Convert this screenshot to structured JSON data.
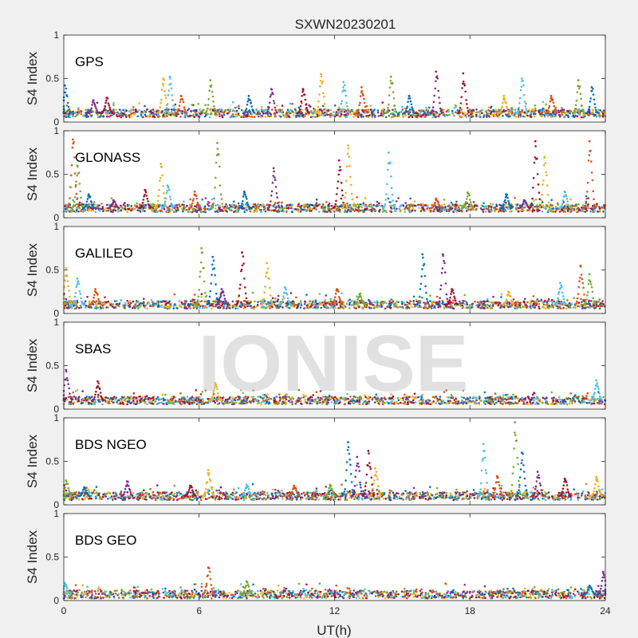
{
  "chart_data": {
    "type": "scatter",
    "title": "SXWN20230201",
    "watermark": "IONISE",
    "xlabel": "UT(h)",
    "ylabel": "S4 Index",
    "xlim": [
      0,
      24
    ],
    "ylim": [
      0,
      1
    ],
    "xticks": [
      0,
      6,
      12,
      18,
      24
    ],
    "yticks": [
      0,
      0.5,
      1
    ],
    "ytick_labels": [
      "0",
      "0.5",
      "1"
    ],
    "grid": false,
    "colors": [
      "#0072bd",
      "#d95319",
      "#edb120",
      "#7e2f8e",
      "#77ac30",
      "#4dbeee",
      "#a2142f"
    ],
    "panels": [
      {
        "name": "GPS",
        "baseline": 0.1,
        "spikes": [
          [
            0.05,
            0.42
          ],
          [
            1.3,
            0.25
          ],
          [
            1.9,
            0.28
          ],
          [
            4.4,
            0.5
          ],
          [
            4.7,
            0.52
          ],
          [
            5.2,
            0.3
          ],
          [
            6.5,
            0.48
          ],
          [
            8.2,
            0.3
          ],
          [
            9.2,
            0.38
          ],
          [
            10.6,
            0.38
          ],
          [
            11.4,
            0.55
          ],
          [
            12.4,
            0.46
          ],
          [
            13.2,
            0.4
          ],
          [
            14.5,
            0.52
          ],
          [
            15.3,
            0.3
          ],
          [
            16.5,
            0.58
          ],
          [
            17.7,
            0.56
          ],
          [
            19.5,
            0.3
          ],
          [
            20.3,
            0.5
          ],
          [
            21.6,
            0.3
          ],
          [
            22.8,
            0.48
          ],
          [
            23.4,
            0.4
          ]
        ]
      },
      {
        "name": "GLONASS",
        "baseline": 0.11,
        "spikes": [
          [
            0.4,
            0.9
          ],
          [
            0.6,
            0.6
          ],
          [
            1.1,
            0.27
          ],
          [
            2.2,
            0.2
          ],
          [
            3.6,
            0.32
          ],
          [
            4.3,
            0.62
          ],
          [
            4.6,
            0.37
          ],
          [
            5.8,
            0.3
          ],
          [
            6.8,
            0.86
          ],
          [
            8.0,
            0.3
          ],
          [
            9.3,
            0.57
          ],
          [
            12.2,
            0.66
          ],
          [
            12.6,
            0.83
          ],
          [
            14.4,
            0.75
          ],
          [
            16.5,
            0.22
          ],
          [
            17.9,
            0.29
          ],
          [
            19.6,
            0.27
          ],
          [
            20.4,
            0.2
          ],
          [
            20.9,
            0.88
          ],
          [
            21.3,
            0.7
          ],
          [
            22.2,
            0.3
          ],
          [
            23.3,
            0.88
          ]
        ]
      },
      {
        "name": "GALILEO",
        "baseline": 0.1,
        "spikes": [
          [
            0.1,
            0.52
          ],
          [
            0.6,
            0.4
          ],
          [
            1.4,
            0.28
          ],
          [
            6.1,
            0.75
          ],
          [
            6.6,
            0.65
          ],
          [
            7.0,
            0.28
          ],
          [
            7.9,
            0.7
          ],
          [
            9.0,
            0.58
          ],
          [
            9.8,
            0.3
          ],
          [
            12.1,
            0.28
          ],
          [
            13.1,
            0.22
          ],
          [
            15.9,
            0.68
          ],
          [
            16.8,
            0.68
          ],
          [
            17.2,
            0.28
          ],
          [
            19.7,
            0.25
          ],
          [
            22.0,
            0.35
          ],
          [
            22.9,
            0.55
          ],
          [
            23.3,
            0.45
          ]
        ]
      },
      {
        "name": "SBAS",
        "baseline": 0.1,
        "spikes": [
          [
            0.1,
            0.45
          ],
          [
            1.5,
            0.32
          ],
          [
            6.7,
            0.3
          ],
          [
            23.6,
            0.33
          ]
        ]
      },
      {
        "name": "BDS NGEO",
        "baseline": 0.1,
        "spikes": [
          [
            0.1,
            0.28
          ],
          [
            0.9,
            0.2
          ],
          [
            2.8,
            0.27
          ],
          [
            5.6,
            0.22
          ],
          [
            6.4,
            0.4
          ],
          [
            8.1,
            0.23
          ],
          [
            10.2,
            0.22
          ],
          [
            11.8,
            0.23
          ],
          [
            12.6,
            0.72
          ],
          [
            13.0,
            0.55
          ],
          [
            13.5,
            0.62
          ],
          [
            13.8,
            0.42
          ],
          [
            18.6,
            0.7
          ],
          [
            19.2,
            0.33
          ],
          [
            20.0,
            0.95
          ],
          [
            20.3,
            0.6
          ],
          [
            21.0,
            0.38
          ],
          [
            22.2,
            0.3
          ],
          [
            23.6,
            0.32
          ]
        ]
      },
      {
        "name": "BDS GEO",
        "baseline": 0.07,
        "spikes": [
          [
            0.05,
            0.2
          ],
          [
            6.4,
            0.38
          ],
          [
            8.1,
            0.22
          ],
          [
            23.3,
            0.17
          ],
          [
            23.9,
            0.33
          ]
        ]
      }
    ]
  }
}
